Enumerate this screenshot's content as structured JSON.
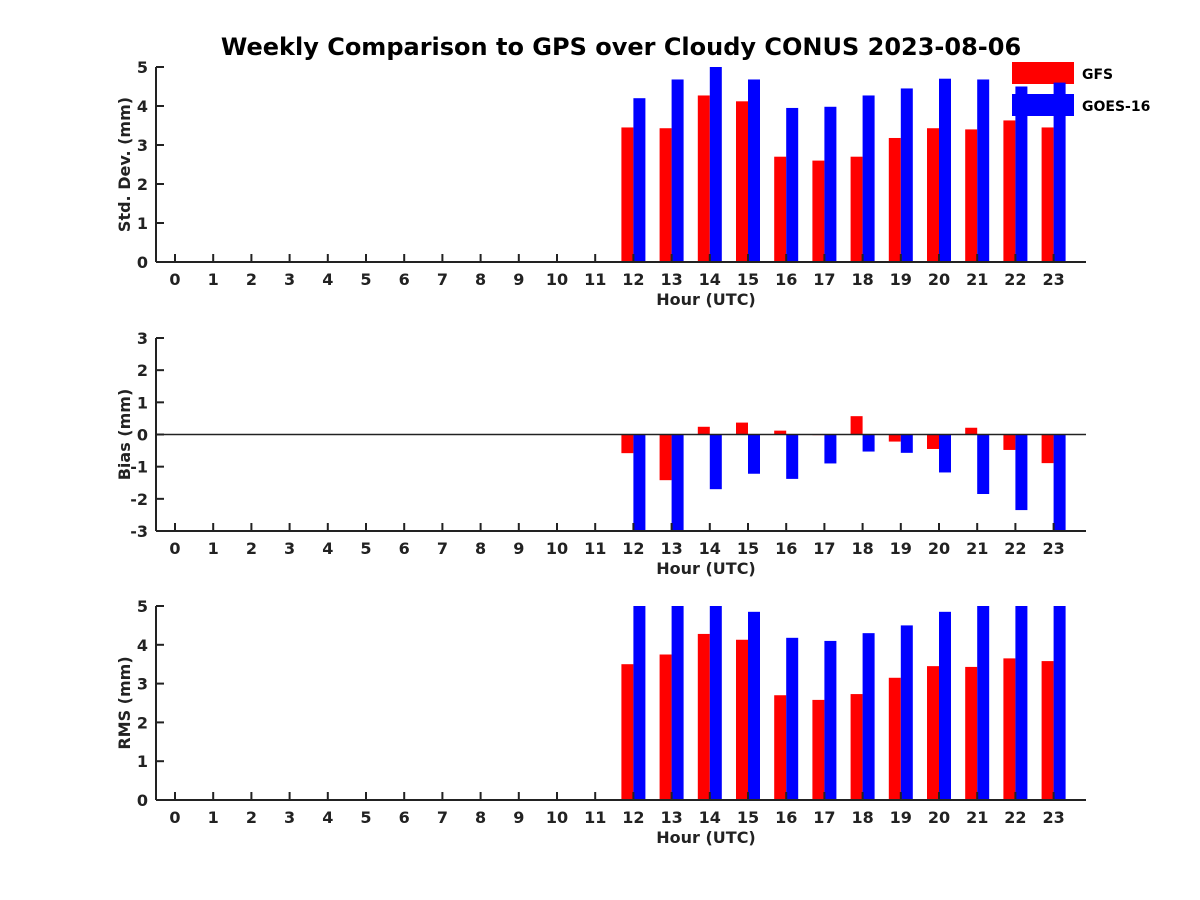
{
  "title": "Weekly Comparison to GPS over Cloudy CONUS 2023-08-06",
  "legend": [
    {
      "label": "GFS",
      "color": "#ff0000"
    },
    {
      "label": "GOES-16",
      "color": "#0000ff"
    }
  ],
  "chart_data": [
    {
      "type": "bar",
      "xlabel": "Hour (UTC)",
      "ylabel": "Std. Dev. (mm)",
      "ylim": [
        0,
        5
      ],
      "yticks": [
        "0",
        "1",
        "2",
        "3",
        "4",
        "5"
      ],
      "categories": [
        "0",
        "1",
        "2",
        "3",
        "4",
        "5",
        "6",
        "7",
        "8",
        "9",
        "10",
        "11",
        "12",
        "13",
        "14",
        "15",
        "16",
        "17",
        "18",
        "19",
        "20",
        "21",
        "22",
        "23"
      ],
      "series": [
        {
          "name": "GFS",
          "color": "#ff0000",
          "values": [
            null,
            null,
            null,
            null,
            null,
            null,
            null,
            null,
            null,
            null,
            null,
            null,
            3.45,
            3.43,
            4.27,
            4.12,
            2.7,
            2.6,
            2.7,
            3.18,
            3.43,
            3.4,
            3.63,
            3.45
          ]
        },
        {
          "name": "GOES-16",
          "color": "#0000ff",
          "values": [
            null,
            null,
            null,
            null,
            null,
            null,
            null,
            null,
            null,
            null,
            null,
            null,
            4.2,
            4.68,
            5.0,
            4.68,
            3.95,
            3.98,
            4.27,
            4.45,
            4.7,
            4.68,
            4.5,
            4.6
          ]
        }
      ]
    },
    {
      "type": "bar",
      "xlabel": "Hour (UTC)",
      "ylabel": "Bias (mm)",
      "ylim": [
        -3,
        3
      ],
      "yticks": [
        "-3",
        "-2",
        "-1",
        "0",
        "1",
        "2",
        "3"
      ],
      "categories": [
        "0",
        "1",
        "2",
        "3",
        "4",
        "5",
        "6",
        "7",
        "8",
        "9",
        "10",
        "11",
        "12",
        "13",
        "14",
        "15",
        "16",
        "17",
        "18",
        "19",
        "20",
        "21",
        "22",
        "23"
      ],
      "series": [
        {
          "name": "GFS",
          "color": "#ff0000",
          "values": [
            null,
            null,
            null,
            null,
            null,
            null,
            null,
            null,
            null,
            null,
            null,
            null,
            -0.58,
            -1.42,
            0.24,
            0.37,
            0.12,
            -0.02,
            0.57,
            -0.22,
            -0.45,
            0.21,
            -0.48,
            -0.89
          ]
        },
        {
          "name": "GOES-16",
          "color": "#0000ff",
          "values": [
            null,
            null,
            null,
            null,
            null,
            null,
            null,
            null,
            null,
            null,
            null,
            null,
            -3.0,
            -3.0,
            -1.7,
            -1.22,
            -1.38,
            -0.9,
            -0.53,
            -0.57,
            -1.18,
            -1.85,
            -2.35,
            -3.0
          ]
        }
      ]
    },
    {
      "type": "bar",
      "xlabel": "Hour (UTC)",
      "ylabel": "RMS (mm)",
      "ylim": [
        0,
        5
      ],
      "yticks": [
        "0",
        "1",
        "2",
        "3",
        "4",
        "5"
      ],
      "categories": [
        "0",
        "1",
        "2",
        "3",
        "4",
        "5",
        "6",
        "7",
        "8",
        "9",
        "10",
        "11",
        "12",
        "13",
        "14",
        "15",
        "16",
        "17",
        "18",
        "19",
        "20",
        "21",
        "22",
        "23"
      ],
      "series": [
        {
          "name": "GFS",
          "color": "#ff0000",
          "values": [
            null,
            null,
            null,
            null,
            null,
            null,
            null,
            null,
            null,
            null,
            null,
            null,
            3.5,
            3.75,
            4.28,
            4.13,
            2.7,
            2.58,
            2.73,
            3.15,
            3.45,
            3.43,
            3.65,
            3.58
          ]
        },
        {
          "name": "GOES-16",
          "color": "#0000ff",
          "values": [
            null,
            null,
            null,
            null,
            null,
            null,
            null,
            null,
            null,
            null,
            null,
            null,
            5.0,
            5.0,
            5.0,
            4.85,
            4.18,
            4.1,
            4.3,
            4.5,
            4.85,
            5.0,
            5.0,
            5.0
          ]
        }
      ]
    }
  ]
}
